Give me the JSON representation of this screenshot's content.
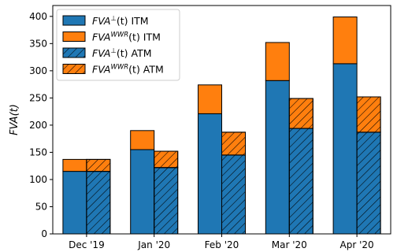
{
  "chart_data": {
    "type": "bar",
    "stacked": true,
    "grouped": true,
    "categories": [
      "Dec '19",
      "Jan '20",
      "Feb '20",
      "Mar '20",
      "Apr '20"
    ],
    "ylabel": "FVA(t)",
    "ylim": [
      0,
      420
    ],
    "yticks": [
      0,
      50,
      100,
      150,
      200,
      250,
      300,
      350,
      400
    ],
    "grid": false,
    "legend_position": "top-left",
    "groups": [
      {
        "name": "ITM",
        "hatched": false,
        "segments": [
          {
            "label_base": "FVA",
            "label_sup": "⊥",
            "label_tail": "(t) ITM",
            "color": "#1f77b4",
            "values": [
              115,
              155,
              221,
              282,
              313
            ]
          },
          {
            "label_base": "FVA",
            "label_sup": "WWR",
            "label_tail": "(t) ITM",
            "color": "#ff7f0e",
            "values": [
              22,
              35,
              53,
              70,
              86
            ]
          }
        ]
      },
      {
        "name": "ATM",
        "hatched": true,
        "segments": [
          {
            "label_base": "FVA",
            "label_sup": "⊥",
            "label_tail": "(t) ATM",
            "color": "#1f77b4",
            "values": [
              115,
              122,
              145,
              194,
              187
            ]
          },
          {
            "label_base": "FVA",
            "label_sup": "WWR",
            "label_tail": "(t) ATM",
            "color": "#ff7f0e",
            "values": [
              22,
              30,
              42,
              55,
              65
            ]
          }
        ]
      }
    ]
  }
}
